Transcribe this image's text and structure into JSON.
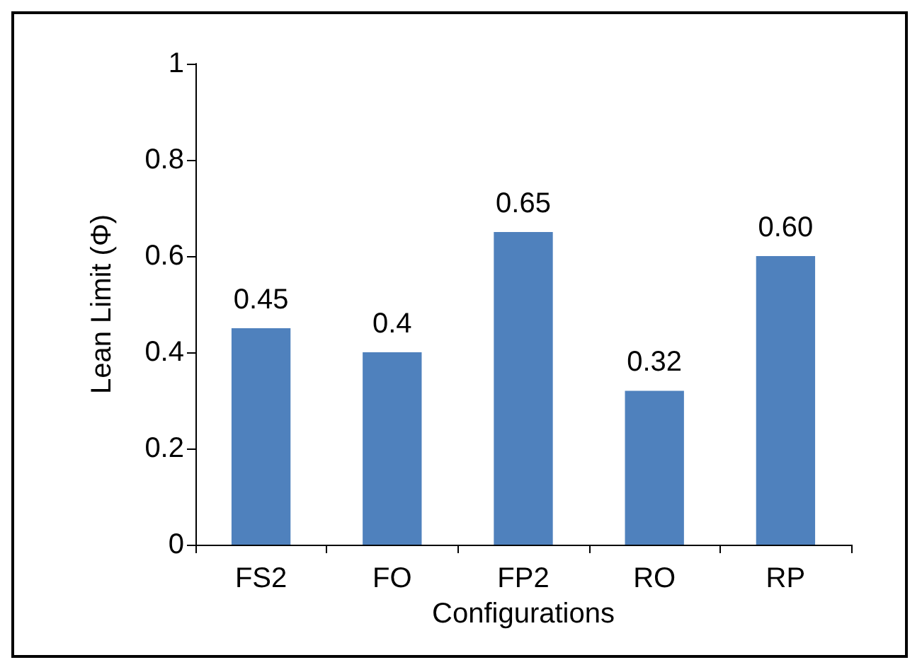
{
  "chart_data": {
    "type": "bar",
    "xlabel": "Configurations",
    "ylabel": "Lean Limit (Φ)",
    "categories": [
      "FS2",
      "FO",
      "FP2",
      "RO",
      "RP"
    ],
    "values": [
      0.45,
      0.4,
      0.65,
      0.32,
      0.6
    ],
    "value_labels": [
      "0.45",
      "0.4",
      "0.65",
      "0.32",
      "0.60"
    ],
    "color": "#4f81bd",
    "ylim": [
      0,
      1
    ],
    "yticks": [
      0,
      0.2,
      0.4,
      0.6,
      0.8,
      1
    ],
    "grid": false
  }
}
